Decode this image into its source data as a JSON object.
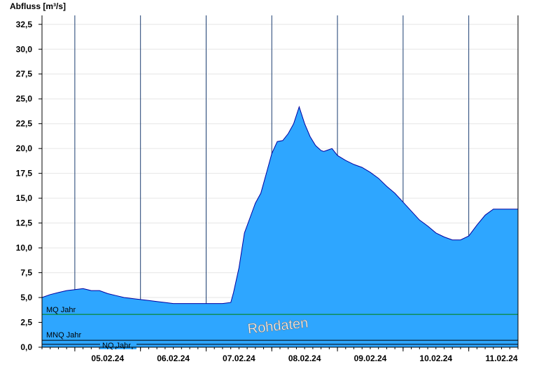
{
  "chart_data": {
    "type": "area",
    "ylabel": "Abfluss [m³/s]",
    "ylim": [
      0,
      33.4
    ],
    "yticks": [
      "0,0",
      "2,5",
      "5,0",
      "7,5",
      "10,0",
      "12,5",
      "15,0",
      "17,5",
      "20,0",
      "22,5",
      "25,0",
      "27,5",
      "30,0",
      "32,5"
    ],
    "xlim": [
      "2024-02-04 12:00",
      "2024-02-11 18:00"
    ],
    "xticks": [
      "05.02.24",
      "06.02.24",
      "07.02.24",
      "08.02.24",
      "09.02.24",
      "10.02.24",
      "11.02.24"
    ],
    "grid": true,
    "fill_color": "#2ea6ff",
    "line_color": "#0000a0",
    "reference_lines": [
      {
        "name": "MQ Jahr",
        "value": 3.3,
        "color": "#008000"
      },
      {
        "name": "MNQ Jahr",
        "value": 0.7,
        "color": "#000000"
      },
      {
        "name": "NQ Jahr",
        "value": 0.5,
        "color": "#000000"
      }
    ],
    "watermark": "Rohdaten",
    "series": [
      {
        "x": [
          "2024-02-04 12:00",
          "2024-02-04 15:00",
          "2024-02-04 18:00",
          "2024-02-04 21:00",
          "2024-02-05 00:00",
          "2024-02-05 03:00",
          "2024-02-05 06:00",
          "2024-02-05 09:00",
          "2024-02-05 12:00",
          "2024-02-05 15:00",
          "2024-02-05 18:00",
          "2024-02-05 21:00",
          "2024-02-06 00:00",
          "2024-02-06 03:00",
          "2024-02-06 06:00",
          "2024-02-06 09:00",
          "2024-02-06 12:00",
          "2024-02-06 15:00",
          "2024-02-06 18:00",
          "2024-02-06 21:00",
          "2024-02-07 00:00",
          "2024-02-07 03:00",
          "2024-02-07 06:00",
          "2024-02-07 09:00",
          "2024-02-07 10:00",
          "2024-02-07 12:00",
          "2024-02-07 14:00",
          "2024-02-07 16:00",
          "2024-02-07 18:00",
          "2024-02-07 20:00",
          "2024-02-07 22:00",
          "2024-02-08 00:00",
          "2024-02-08 02:00",
          "2024-02-08 04:00",
          "2024-02-08 06:00",
          "2024-02-08 08:00",
          "2024-02-08 10:00",
          "2024-02-08 12:00",
          "2024-02-08 14:00",
          "2024-02-08 16:00",
          "2024-02-08 18:00",
          "2024-02-08 19:00",
          "2024-02-08 20:00",
          "2024-02-08 21:00",
          "2024-02-08 22:00",
          "2024-02-09 00:00",
          "2024-02-09 03:00",
          "2024-02-09 06:00",
          "2024-02-09 09:00",
          "2024-02-09 12:00",
          "2024-02-09 15:00",
          "2024-02-09 18:00",
          "2024-02-09 21:00",
          "2024-02-10 00:00",
          "2024-02-10 03:00",
          "2024-02-10 06:00",
          "2024-02-10 09:00",
          "2024-02-10 12:00",
          "2024-02-10 15:00",
          "2024-02-10 18:00",
          "2024-02-10 21:00",
          "2024-02-11 00:00",
          "2024-02-11 03:00",
          "2024-02-11 06:00",
          "2024-02-11 09:00",
          "2024-02-11 12:00",
          "2024-02-11 15:00",
          "2024-02-11 18:00"
        ],
        "y": [
          5.0,
          5.3,
          5.5,
          5.7,
          5.8,
          5.9,
          5.7,
          5.7,
          5.4,
          5.2,
          5.0,
          4.9,
          4.8,
          4.7,
          4.6,
          4.5,
          4.4,
          4.4,
          4.4,
          4.4,
          4.4,
          4.4,
          4.4,
          4.5,
          5.5,
          8.0,
          11.5,
          13.0,
          14.5,
          15.5,
          17.5,
          19.5,
          20.7,
          20.8,
          21.5,
          22.5,
          24.2,
          22.5,
          21.2,
          20.3,
          19.8,
          19.7,
          19.8,
          19.9,
          20.0,
          19.3,
          18.8,
          18.4,
          18.1,
          17.6,
          17.0,
          16.2,
          15.5,
          14.6,
          13.7,
          12.8,
          12.2,
          11.5,
          11.1,
          10.8,
          10.8,
          11.2,
          12.3,
          13.3,
          13.9,
          13.9,
          13.9,
          13.9
        ]
      }
    ]
  }
}
